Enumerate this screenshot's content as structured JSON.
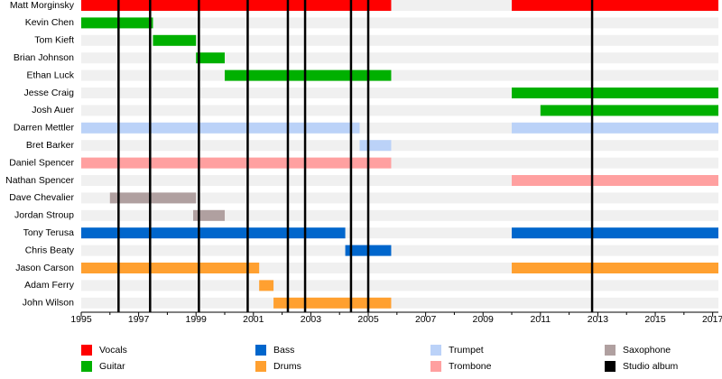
{
  "chart_data": {
    "type": "timeline",
    "categories": [
      "Matt Morginsky",
      "Kevin Chen",
      "Tom Kieft",
      "Brian Johnson",
      "Ethan Luck",
      "Jesse Craig",
      "Josh Auer",
      "Darren Mettler",
      "Bret Barker",
      "Daniel Spencer",
      "Nathan Spencer",
      "Dave Chevalier",
      "Jordan Stroup",
      "Tony Terusa",
      "Chris Beaty",
      "Jason Carson",
      "Adam Ferry",
      "John Wilson"
    ],
    "series": [
      {
        "name": "Vocals",
        "color": "#ff0000",
        "values": [
          [
            [
              1995,
              2005.8
            ],
            [
              2010,
              2017.2
            ]
          ],
          null,
          null,
          null,
          null,
          null,
          null,
          null,
          null,
          null,
          null,
          null,
          null,
          null,
          null,
          null,
          null,
          null
        ]
      },
      {
        "name": "Guitar",
        "color": "#00b000",
        "values": [
          null,
          [
            [
              1995,
              1997.5
            ]
          ],
          [
            [
              1997.5,
              1999
            ]
          ],
          [
            [
              1999,
              2000
            ]
          ],
          [
            [
              2000,
              2005.8
            ]
          ],
          [
            [
              2010,
              2017.2
            ]
          ],
          [
            [
              2011,
              2017.2
            ]
          ],
          null,
          null,
          null,
          null,
          null,
          null,
          null,
          null,
          null,
          null,
          null
        ]
      },
      {
        "name": "Bass",
        "color": "#0066cc",
        "values": [
          null,
          null,
          null,
          null,
          null,
          null,
          null,
          null,
          null,
          null,
          null,
          null,
          null,
          [
            [
              1995,
              2004.2
            ],
            [
              2010,
              2017.2
            ]
          ],
          [
            [
              2004.2,
              2005.8
            ]
          ],
          null,
          null,
          null
        ]
      },
      {
        "name": "Drums",
        "color": "#ffa030",
        "values": [
          null,
          null,
          null,
          null,
          null,
          null,
          null,
          null,
          null,
          null,
          null,
          null,
          null,
          null,
          null,
          [
            [
              1995,
              2001.2
            ],
            [
              2010,
              2017.2
            ]
          ],
          [
            [
              2001.2,
              2001.7
            ]
          ],
          [
            [
              2001.7,
              2005.8
            ]
          ]
        ]
      },
      {
        "name": "Trumpet",
        "color": "#bbd2f8",
        "values": [
          null,
          null,
          null,
          null,
          null,
          null,
          null,
          [
            [
              1995,
              2004.7
            ],
            [
              2010,
              2017.2
            ]
          ],
          [
            [
              2004.7,
              2005.8
            ]
          ],
          null,
          null,
          null,
          null,
          null,
          null,
          null,
          null,
          null
        ]
      },
      {
        "name": "Trombone",
        "color": "#ffa0a0",
        "values": [
          null,
          null,
          null,
          null,
          null,
          null,
          null,
          null,
          null,
          [
            [
              1995,
              2005.8
            ]
          ],
          [
            [
              2010,
              2017.2
            ]
          ],
          null,
          null,
          null,
          null,
          null,
          null,
          null
        ]
      },
      {
        "name": "Saxophone",
        "color": "#b0a0a0",
        "values": [
          null,
          null,
          null,
          null,
          null,
          null,
          null,
          null,
          null,
          null,
          null,
          [
            [
              1996,
              1999
            ]
          ],
          [
            [
              1998.9,
              2000
            ]
          ],
          null,
          null,
          null,
          null,
          null
        ]
      }
    ],
    "events": {
      "name": "Studio album",
      "color": "#000000",
      "values": [
        1996.3,
        1997.4,
        1999.1,
        2000.8,
        2002.2,
        2002.8,
        2004.4,
        2005.0,
        2012.8
      ]
    },
    "xlim": [
      1995,
      2017.2
    ],
    "xticks": [
      1995,
      1997,
      1999,
      2001,
      2003,
      2005,
      2007,
      2009,
      2011,
      2013,
      2015,
      2017
    ],
    "xticks_minor": [
      1996,
      1998,
      2000,
      2002,
      2004,
      2006,
      2008,
      2010,
      2012,
      2014,
      2016
    ]
  }
}
